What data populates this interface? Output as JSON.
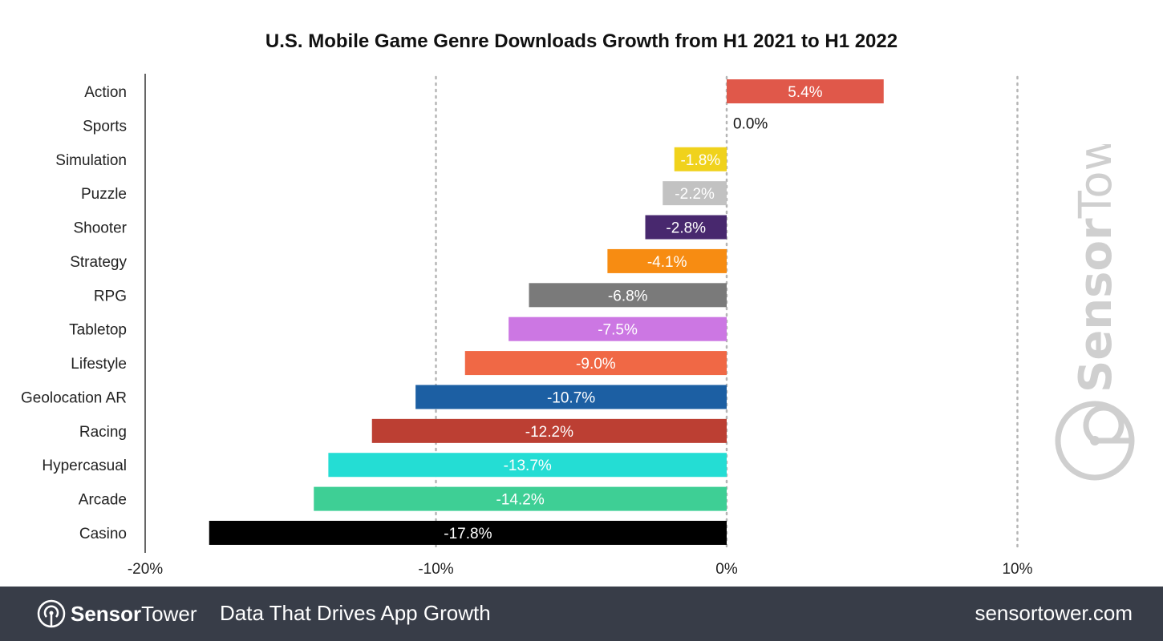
{
  "chart_data": {
    "type": "bar",
    "orientation": "horizontal",
    "title": "U.S. Mobile Game Genre Downloads Growth from H1 2021 to H1 2022",
    "categories": [
      "Action",
      "Sports",
      "Simulation",
      "Puzzle",
      "Shooter",
      "Strategy",
      "RPG",
      "Tabletop",
      "Lifestyle",
      "Geolocation AR",
      "Racing",
      "Hypercasual",
      "Arcade",
      "Casino"
    ],
    "values": [
      5.4,
      0.0,
      -1.8,
      -2.2,
      -2.8,
      -4.1,
      -6.8,
      -7.5,
      -9.0,
      -10.7,
      -12.2,
      -13.7,
      -14.2,
      -17.8
    ],
    "data_labels": [
      "5.4%",
      "0.0%",
      "-1.8%",
      "-2.2%",
      "-2.8%",
      "-4.1%",
      "-6.8%",
      "-7.5%",
      "-9.0%",
      "-10.7%",
      "-12.2%",
      "-13.7%",
      "-14.2%",
      "-17.8%"
    ],
    "colors": [
      "#e0584a",
      "#000000",
      "#f0d21c",
      "#c2c2c2",
      "#48286e",
      "#f78c12",
      "#7a7a7a",
      "#cc77e3",
      "#f06845",
      "#1c5fa3",
      "#bc3f33",
      "#24ddd4",
      "#3ecf95",
      "#000000"
    ],
    "xlim": [
      -20,
      13
    ],
    "xticks": [
      -20,
      -10,
      0,
      10
    ],
    "xtick_labels": [
      "-20%",
      "-10%",
      "0%",
      "10%"
    ],
    "grid": "vertical dotted",
    "xlabel": "",
    "ylabel": ""
  },
  "watermark": "SensorTower",
  "footer": {
    "brand_bold": "Sensor",
    "brand_light": "Tower",
    "tagline": "Data That Drives App Growth",
    "url": "sensortower.com"
  }
}
